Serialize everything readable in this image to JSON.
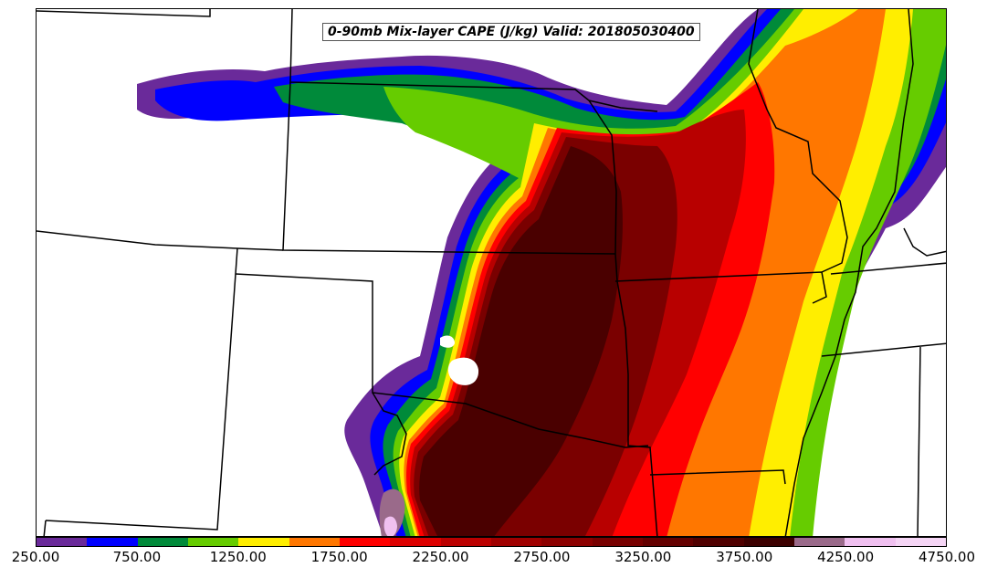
{
  "title": "0-90mb Mix-layer CAPE (J/kg) Valid: 201805030400",
  "colorbar": {
    "min": 250,
    "max": 4750,
    "step": 250,
    "tick_labels": [
      "250.00",
      "750.00",
      "1250.00",
      "1750.00",
      "2250.00",
      "2750.00",
      "3250.00",
      "3750.00",
      "4250.00",
      "4750.00"
    ],
    "colors": [
      "#6a2a9a",
      "#0000ff",
      "#008a3a",
      "#66cc00",
      "#ffee00",
      "#ff7700",
      "#ff0000",
      "#dd0000",
      "#bb0000",
      "#a00000",
      "#8c0000",
      "#780000",
      "#640000",
      "#500000",
      "#3c0000",
      "#9a6a8a",
      "#f0c0f0",
      "#f5d5f5"
    ]
  },
  "colors": {
    "border": "#000000",
    "background": "#ffffff"
  }
}
